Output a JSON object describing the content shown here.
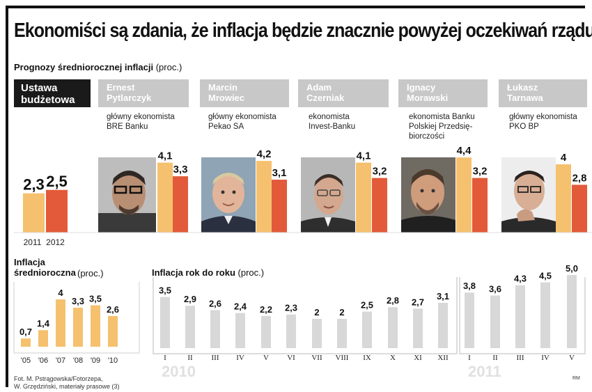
{
  "title": "Ekonomiści są zdania, że inflacja będzie znacznie powyżej oczekiwań rządu",
  "forecast_section": {
    "label": "Prognozy średniorocznej inflacji",
    "unit": "(proc.)"
  },
  "budget": {
    "label": "Ustawa\nbudżetowa",
    "years": [
      "2011",
      "2012"
    ],
    "values": [
      "2,3",
      "2,5"
    ]
  },
  "economists": [
    {
      "name": "Ernest\nPytlarczyk",
      "role": "główny ekonomista\nBRE Banku",
      "values": [
        "4,1",
        "3,3"
      ]
    },
    {
      "name": "Marcin\nMrowiec",
      "role": "główny ekonomista\nPekao SA",
      "values": [
        "4,2",
        "3,1"
      ]
    },
    {
      "name": "Adam\nCzerniak",
      "role": "ekonomista\nInvest-Banku",
      "values": [
        "4,1",
        "3,2"
      ]
    },
    {
      "name": "Ignacy\nMorawski",
      "role": "ekonomista Banku\nPolskiej Przedsię-\nbiorczości",
      "values": [
        "4,4",
        "3,2"
      ]
    },
    {
      "name": "Łukasz\nTarnawa",
      "role": "główny ekonomista\nPKO BP",
      "values": [
        "4",
        "2,8"
      ]
    }
  ],
  "annual_section": {
    "label": "Inflacja\nśrednioroczna",
    "unit": "(proc.)"
  },
  "yoy_section": {
    "label": "Inflacja rok do roku",
    "unit": "(proc.)"
  },
  "year_labels": [
    "2010",
    "2011"
  ],
  "credits": "Fot. M. Pstrągowska/Fotorzepa,\nW. Grzędziński, materiały prasowe (3)",
  "signature": "RM",
  "colors": {
    "light": "#f5c16f",
    "dark": "#e25a3a",
    "gray": "#d8d8d8",
    "tab_gray": "#c8c8c8",
    "black": "#1a1a1a"
  },
  "chart_data": [
    {
      "type": "bar",
      "series": [
        {
          "name": "2011",
          "values": [
            2.3,
            4.1,
            4.2,
            4.1,
            4.4,
            4.0
          ],
          "labels": [
            "2,3",
            "4,1",
            "4,2",
            "4,1",
            "4,4",
            "4"
          ]
        },
        {
          "name": "2012",
          "values": [
            2.5,
            3.3,
            3.1,
            3.2,
            3.2,
            2.8
          ],
          "labels": [
            "2,5",
            "3,3",
            "3,1",
            "3,2",
            "3,2",
            "2,8"
          ]
        }
      ]
    },
    {
      "type": "bar",
      "categories": [
        "'05",
        "'06",
        "'07",
        "'08",
        "'09",
        "'10"
      ],
      "values": [
        0.7,
        1.4,
        4,
        3.3,
        3.5,
        2.6
      ],
      "labels": [
        "0,7",
        "1,4",
        "4",
        "3,3",
        "3,5",
        "2,6"
      ]
    },
    {
      "type": "bar",
      "categories": [
        "I",
        "II",
        "III",
        "IV",
        "V",
        "VI",
        "VII",
        "VIII",
        "IX",
        "X",
        "XI",
        "XII",
        "I",
        "II",
        "III",
        "IV",
        "V"
      ],
      "values": [
        3.5,
        2.9,
        2.6,
        2.4,
        2.2,
        2.3,
        2,
        2,
        2.5,
        2.8,
        2.7,
        3.1,
        3.8,
        3.6,
        4.3,
        4.5,
        5.0
      ],
      "labels": [
        "3,5",
        "2,9",
        "2,6",
        "2,4",
        "2,2",
        "2,3",
        "2",
        "2",
        "2,5",
        "2,8",
        "2,7",
        "3,1",
        "3,8",
        "3,6",
        "4,3",
        "4,5",
        "5,0"
      ]
    }
  ]
}
